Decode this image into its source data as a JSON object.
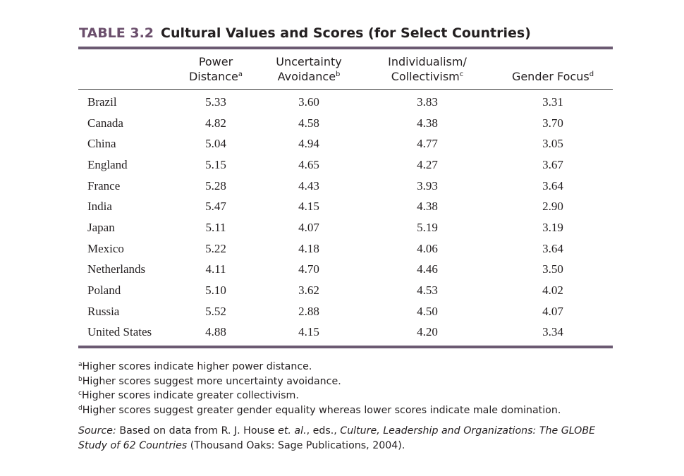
{
  "table": {
    "number": "TABLE 3.2",
    "title": "Cultural Values and Scores (for Select Countries)",
    "columns": [
      {
        "line1": "Power",
        "line2": "Distance",
        "note": "a"
      },
      {
        "line1": "Uncertainty",
        "line2": "Avoidance",
        "note": "b"
      },
      {
        "line1": "Individualism/",
        "line2": "Collectivism",
        "note": "c"
      },
      {
        "line1": "",
        "line2": "Gender Focus",
        "note": "d"
      }
    ],
    "rows": [
      {
        "country": "Brazil",
        "values": [
          "5.33",
          "3.60",
          "3.83",
          "3.31"
        ]
      },
      {
        "country": "Canada",
        "values": [
          "4.82",
          "4.58",
          "4.38",
          "3.70"
        ]
      },
      {
        "country": "China",
        "values": [
          "5.04",
          "4.94",
          "4.77",
          "3.05"
        ]
      },
      {
        "country": "England",
        "values": [
          "5.15",
          "4.65",
          "4.27",
          "3.67"
        ]
      },
      {
        "country": "France",
        "values": [
          "5.28",
          "4.43",
          "3.93",
          "3.64"
        ]
      },
      {
        "country": "India",
        "values": [
          "5.47",
          "4.15",
          "4.38",
          "2.90"
        ]
      },
      {
        "country": "Japan",
        "values": [
          "5.11",
          "4.07",
          "5.19",
          "3.19"
        ]
      },
      {
        "country": "Mexico",
        "values": [
          "5.22",
          "4.18",
          "4.06",
          "3.64"
        ]
      },
      {
        "country": "Netherlands",
        "values": [
          "4.11",
          "4.70",
          "4.46",
          "3.50"
        ]
      },
      {
        "country": "Poland",
        "values": [
          "5.10",
          "3.62",
          "4.53",
          "4.02"
        ]
      },
      {
        "country": "Russia",
        "values": [
          "5.52",
          "2.88",
          "4.50",
          "4.07"
        ]
      },
      {
        "country": "United States",
        "values": [
          "4.88",
          "4.15",
          "4.20",
          "3.34"
        ]
      }
    ]
  },
  "footnotes": [
    {
      "mark": "a",
      "text": "Higher scores indicate higher power distance."
    },
    {
      "mark": "b",
      "text": "Higher scores suggest more uncertainty avoidance."
    },
    {
      "mark": "c",
      "text": "Higher scores indicate greater collectivism."
    },
    {
      "mark": "d",
      "text": "Higher scores suggest greater gender equality whereas lower scores indicate male domination."
    }
  ],
  "source": {
    "label": "Source:",
    "text1": " Based on data from R. J. House ",
    "etal": "et. al.",
    "text2": ", eds., ",
    "book": "Culture, Leadership and Organizations: The GLOBE Study of 62 Countries",
    "text3": " (Thousand Oaks: Sage Publications, 2004)."
  },
  "colors": {
    "accent": "#6b4f6c",
    "rule": "#6b5a72"
  }
}
